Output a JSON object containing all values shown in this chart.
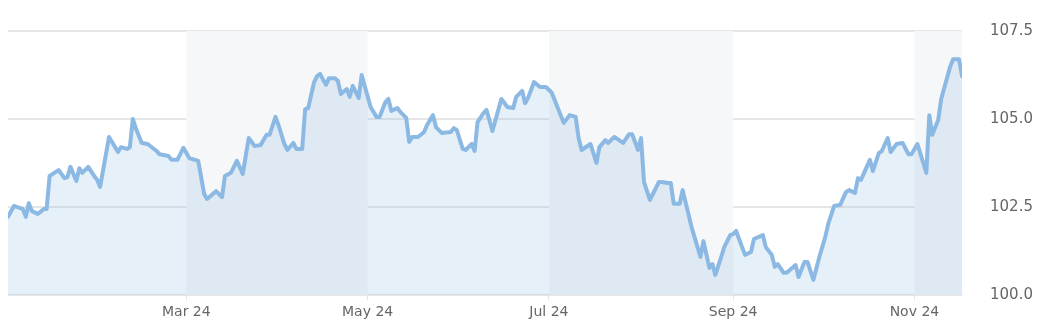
{
  "chart_data": {
    "type": "area",
    "x": [
      "2024-01-01",
      "2024-01-03",
      "2024-01-06",
      "2024-01-07",
      "2024-01-08",
      "2024-01-09",
      "2024-01-11",
      "2024-01-13",
      "2024-01-14",
      "2024-01-15",
      "2024-01-18",
      "2024-01-20",
      "2024-01-21",
      "2024-01-22",
      "2024-01-24",
      "2024-01-25",
      "2024-01-26",
      "2024-01-28",
      "2024-01-30",
      "2024-01-31",
      "2024-02-01",
      "2024-02-04",
      "2024-02-07",
      "2024-02-08",
      "2024-02-10",
      "2024-02-11",
      "2024-02-12",
      "2024-02-13",
      "2024-02-15",
      "2024-02-17",
      "2024-02-20",
      "2024-02-21",
      "2024-02-24",
      "2024-02-25",
      "2024-02-27",
      "2024-02-29",
      "2024-03-02",
      "2024-03-05",
      "2024-03-07",
      "2024-03-08",
      "2024-03-11",
      "2024-03-13",
      "2024-03-14",
      "2024-03-16",
      "2024-03-18",
      "2024-03-20",
      "2024-03-22",
      "2024-03-24",
      "2024-03-26",
      "2024-03-28",
      "2024-03-29",
      "2024-03-31",
      "2024-04-01",
      "2024-04-03",
      "2024-04-04",
      "2024-04-06",
      "2024-04-07",
      "2024-04-09",
      "2024-04-10",
      "2024-04-11",
      "2024-04-13",
      "2024-04-14",
      "2024-04-15",
      "2024-04-17",
      "2024-04-18",
      "2024-04-20",
      "2024-04-21",
      "2024-04-22",
      "2024-04-24",
      "2024-04-25",
      "2024-04-26",
      "2024-04-28",
      "2024-04-29",
      "2024-05-02",
      "2024-05-04",
      "2024-05-05",
      "2024-05-07",
      "2024-05-08",
      "2024-05-09",
      "2024-05-11",
      "2024-05-12",
      "2024-05-14",
      "2024-05-15",
      "2024-05-16",
      "2024-05-18",
      "2024-05-20",
      "2024-05-21",
      "2024-05-23",
      "2024-05-24",
      "2024-05-26",
      "2024-05-29",
      "2024-05-30",
      "2024-05-31",
      "2024-06-02",
      "2024-06-03",
      "2024-06-05",
      "2024-06-06",
      "2024-06-07",
      "2024-06-09",
      "2024-06-10",
      "2024-06-12",
      "2024-06-15",
      "2024-06-17",
      "2024-06-19",
      "2024-06-20",
      "2024-06-22",
      "2024-06-23",
      "2024-06-24",
      "2024-06-26",
      "2024-06-28",
      "2024-06-30",
      "2024-07-02",
      "2024-07-06",
      "2024-07-08",
      "2024-07-10",
      "2024-07-11",
      "2024-07-12",
      "2024-07-15",
      "2024-07-17",
      "2024-07-18",
      "2024-07-20",
      "2024-07-21",
      "2024-07-23",
      "2024-07-26",
      "2024-07-28",
      "2024-07-29",
      "2024-07-31",
      "2024-08-01",
      "2024-08-02",
      "2024-08-04",
      "2024-08-07",
      "2024-08-08",
      "2024-08-10",
      "2024-08-11",
      "2024-08-12",
      "2024-08-14",
      "2024-08-15",
      "2024-08-18",
      "2024-08-21",
      "2024-08-22",
      "2024-08-24",
      "2024-08-25",
      "2024-08-26",
      "2024-08-28",
      "2024-08-29",
      "2024-08-31",
      "2024-09-01",
      "2024-09-02",
      "2024-09-04",
      "2024-09-05",
      "2024-09-07",
      "2024-09-08",
      "2024-09-11",
      "2024-09-12",
      "2024-09-14",
      "2024-09-15",
      "2024-09-16",
      "2024-09-18",
      "2024-09-19",
      "2024-09-22",
      "2024-09-23",
      "2024-09-25",
      "2024-09-26",
      "2024-09-28",
      "2024-09-30",
      "2024-10-02",
      "2024-10-03",
      "2024-10-05",
      "2024-10-07",
      "2024-10-09",
      "2024-10-10",
      "2024-10-12",
      "2024-10-13",
      "2024-10-14",
      "2024-10-17",
      "2024-10-18",
      "2024-10-20",
      "2024-10-21",
      "2024-10-23",
      "2024-10-24",
      "2024-10-26",
      "2024-10-28",
      "2024-10-30",
      "2024-10-31",
      "2024-11-02",
      "2024-11-05",
      "2024-11-06",
      "2024-11-07",
      "2024-11-09",
      "2024-11-10",
      "2024-11-13",
      "2024-11-14",
      "2024-11-16",
      "2024-11-17"
    ],
    "series": [
      {
        "color": "#8bb9e3",
        "values": [
          102.22,
          102.53,
          102.44,
          102.22,
          102.61,
          102.39,
          102.3,
          102.44,
          102.44,
          103.38,
          103.55,
          103.32,
          103.35,
          103.64,
          103.24,
          103.6,
          103.47,
          103.64,
          103.38,
          103.27,
          103.07,
          104.49,
          104.06,
          104.2,
          104.15,
          104.2,
          105.0,
          104.74,
          104.32,
          104.29,
          104.09,
          104.0,
          103.95,
          103.84,
          103.84,
          104.18,
          103.89,
          103.81,
          102.87,
          102.73,
          102.95,
          102.78,
          103.38,
          103.47,
          103.81,
          103.44,
          104.46,
          104.23,
          104.26,
          104.55,
          104.55,
          105.06,
          104.83,
          104.29,
          104.12,
          104.32,
          104.15,
          104.15,
          105.28,
          105.31,
          106.05,
          106.22,
          106.28,
          105.97,
          106.16,
          106.16,
          106.08,
          105.71,
          105.85,
          105.63,
          105.94,
          105.6,
          106.25,
          105.34,
          105.06,
          105.06,
          105.48,
          105.57,
          105.23,
          105.31,
          105.2,
          105.03,
          104.35,
          104.49,
          104.49,
          104.63,
          104.83,
          105.11,
          104.77,
          104.6,
          104.63,
          104.74,
          104.69,
          104.15,
          104.12,
          104.29,
          104.09,
          104.91,
          105.17,
          105.26,
          104.66,
          105.57,
          105.34,
          105.31,
          105.63,
          105.8,
          105.45,
          105.6,
          106.05,
          105.91,
          105.91,
          105.74,
          104.89,
          105.11,
          105.06,
          104.46,
          104.12,
          104.29,
          103.75,
          104.2,
          104.4,
          104.32,
          104.49,
          104.32,
          104.57,
          104.57,
          104.12,
          104.46,
          103.21,
          102.7,
          103.21,
          103.21,
          103.18,
          103.18,
          102.59,
          102.59,
          102.98,
          101.93,
          101.08,
          101.53,
          100.77,
          100.88,
          100.57,
          101.08,
          101.36,
          101.7,
          101.73,
          101.82,
          101.36,
          101.14,
          101.22,
          101.59,
          101.7,
          101.36,
          101.14,
          100.8,
          100.88,
          100.63,
          100.63,
          100.85,
          100.51,
          100.94,
          100.94,
          100.43,
          101.08,
          101.65,
          102.02,
          102.53,
          102.56,
          102.93,
          102.98,
          102.9,
          103.32,
          103.27,
          103.84,
          103.52,
          104.03,
          104.09,
          104.46,
          104.06,
          104.29,
          104.32,
          104.0,
          104.0,
          104.29,
          103.47,
          105.11,
          104.55,
          104.97,
          105.57,
          106.48,
          106.7,
          106.7,
          106.22
        ]
      }
    ],
    "xlim": [
      "2024-01-01",
      "2024-11-17"
    ],
    "xticks": [
      {
        "value": "2024-03-01",
        "label": "Mar 24"
      },
      {
        "value": "2024-05-01",
        "label": "May 24"
      },
      {
        "value": "2024-07-01",
        "label": "Jul 24"
      },
      {
        "value": "2024-09-01",
        "label": "Sep 24"
      },
      {
        "value": "2024-11-01",
        "label": "Nov 24"
      }
    ],
    "ylim": [
      100,
      107.5
    ],
    "yticks": [
      {
        "value": 100,
        "label": "100.0"
      },
      {
        "value": 102.5,
        "label": "102.5"
      },
      {
        "value": 105,
        "label": "105.0"
      },
      {
        "value": 107.5,
        "label": "107.5"
      }
    ],
    "bands": [
      {
        "axis": "x",
        "from": "2024-03-01",
        "to": "2024-05-01",
        "color": "#f6f7f8"
      },
      {
        "axis": "x",
        "from": "2024-07-01",
        "to": "2024-09-01",
        "color": "#f6f7f8"
      },
      {
        "axis": "x",
        "from": "2024-11-01",
        "to": "2024-11-17",
        "color": "#f6f7f8"
      }
    ],
    "grid": "y",
    "legend": false,
    "marker": "none",
    "line_style": "solid"
  }
}
